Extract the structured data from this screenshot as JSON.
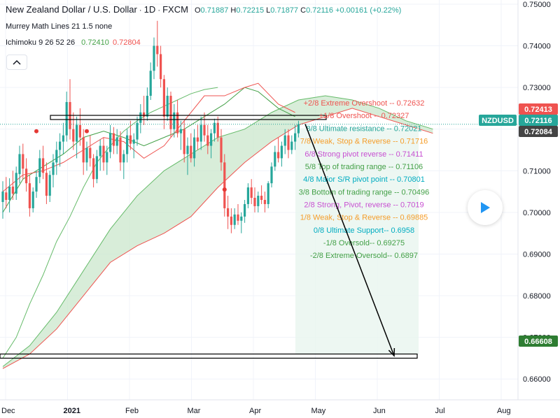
{
  "header": {
    "symbol_title": "New Zealand Dollar / U.S. Dollar",
    "interval": "1D",
    "exchange": "FXCM",
    "ohlc": {
      "open_label": "O",
      "open": "0.71887",
      "high_label": "H",
      "high": "0.72215",
      "low_label": "L",
      "low": "0.71877",
      "close_label": "C",
      "close": "0.72116",
      "change": "+0.00161 (+0.22%)"
    },
    "indicators": [
      {
        "label": "Murrey Math Lines 21 1.5 none"
      },
      {
        "label": "Ichimoku 9 26 52 26",
        "values": [
          "0.72410",
          "0.72804"
        ]
      }
    ]
  },
  "colors": {
    "up": "#26a69a",
    "down": "#ef5350",
    "conversion": "#43a047",
    "base": "#ef5350",
    "cloud_bull": "#c8e6c9",
    "cloud_bear": "#ffcdd2",
    "arrow": "#000000"
  },
  "icons": {
    "collapse": "chevron-up-icon",
    "play": "play-icon"
  },
  "price_axis": {
    "ticks": [
      "0.75000",
      "0.74000",
      "0.73000",
      "0.72000",
      "0.71000",
      "0.70000",
      "0.69000",
      "0.68000",
      "0.67000",
      "0.66000"
    ],
    "badges": [
      {
        "text": "0.72413",
        "color": "#ef5350"
      },
      {
        "text": "NZDUSD",
        "color": "#26a69a"
      },
      {
        "text": "0.72116",
        "color": "#26a69a"
      },
      {
        "text": "0.72084",
        "color": "#444444"
      },
      {
        "text": "0.66608",
        "color": "#2e7d32"
      }
    ]
  },
  "time_axis": {
    "ticks": [
      {
        "label": "Dec"
      },
      {
        "label": "2021",
        "bold": true
      },
      {
        "label": "Feb"
      },
      {
        "label": "Mar"
      },
      {
        "label": "Apr"
      },
      {
        "label": "May"
      },
      {
        "label": "Jun"
      },
      {
        "label": "Jul"
      },
      {
        "label": "Aug"
      }
    ]
  },
  "chart_data": {
    "type": "candlestick",
    "symbol": "NZDUSD",
    "ylim": [
      0.655,
      0.751
    ],
    "grid": true,
    "price_levels": [
      {
        "text": "+2/8 Extreme Overshoot --  0.72632",
        "value": 0.72632,
        "color": "#ef5350"
      },
      {
        "text": "+1/8 Overshoot --  0.72327",
        "value": 0.72327,
        "color": "#ef5350"
      },
      {
        "text": "8/8 Ultimate resistance --  0.72021",
        "value": 0.72021,
        "color": "#26a69a"
      },
      {
        "text": "7/8 Weak, Stop & Reverse --  0.71716",
        "value": 0.71716,
        "color": "#f59d2a"
      },
      {
        "text": "6/8 Strong pivot reverse --  0.71411",
        "value": 0.71411,
        "color": "#c74fd1"
      },
      {
        "text": "5/8 Top of trading range --  0.71106",
        "value": 0.71106,
        "color": "#43a047"
      },
      {
        "text": "4/8 Major S/R pivot point --  0.70801",
        "value": 0.70801,
        "color": "#00acc1"
      },
      {
        "text": "3/8 Bottom of trading range --  0.70496",
        "value": 0.70496,
        "color": "#43a047"
      },
      {
        "text": "2/8 Strong, Pivot, reverse --  0.7019",
        "value": 0.7019,
        "color": "#c74fd1"
      },
      {
        "text": "1/8 Weak, Stop & Reverse --  0.69885",
        "value": 0.69885,
        "color": "#f59d2a"
      },
      {
        "text": "0/8 Ultimate Support--  0.6958",
        "value": 0.6958,
        "color": "#00acc1"
      },
      {
        "text": "-1/8 Oversold--  0.69275",
        "value": 0.69275,
        "color": "#43a047"
      },
      {
        "text": "-2/8 Extreme Oversold--  0.6897",
        "value": 0.6897,
        "color": "#43a047"
      }
    ],
    "horizontal_zones": [
      {
        "name": "resistance-box",
        "top": 0.7233,
        "bottom": 0.7223
      },
      {
        "name": "target-box",
        "top": 0.666,
        "bottom": 0.665
      }
    ],
    "arrow_target": 0.66608,
    "candles": [
      [
        0.7025,
        0.7075,
        0.6985,
        0.705
      ],
      [
        0.7048,
        0.7085,
        0.701,
        0.703
      ],
      [
        0.703,
        0.7082,
        0.7,
        0.7062
      ],
      [
        0.7062,
        0.71,
        0.703,
        0.7045
      ],
      [
        0.7045,
        0.711,
        0.703,
        0.7095
      ],
      [
        0.7092,
        0.716,
        0.707,
        0.714
      ],
      [
        0.714,
        0.7165,
        0.708,
        0.7105
      ],
      [
        0.7105,
        0.713,
        0.705,
        0.707
      ],
      [
        0.707,
        0.709,
        0.699,
        0.701
      ],
      [
        0.701,
        0.706,
        0.7,
        0.705
      ],
      [
        0.705,
        0.71,
        0.7035,
        0.7085
      ],
      [
        0.7085,
        0.715,
        0.707,
        0.713
      ],
      [
        0.713,
        0.716,
        0.708,
        0.7095
      ],
      [
        0.7095,
        0.712,
        0.702,
        0.704
      ],
      [
        0.704,
        0.71,
        0.7025,
        0.709
      ],
      [
        0.709,
        0.714,
        0.706,
        0.712
      ],
      [
        0.712,
        0.717,
        0.709,
        0.715
      ],
      [
        0.715,
        0.719,
        0.711,
        0.717
      ],
      [
        0.717,
        0.7215,
        0.714,
        0.7185
      ],
      [
        0.7185,
        0.729,
        0.717,
        0.7265
      ],
      [
        0.7265,
        0.732,
        0.7175,
        0.72
      ],
      [
        0.72,
        0.724,
        0.715,
        0.717
      ],
      [
        0.717,
        0.723,
        0.713,
        0.721
      ],
      [
        0.721,
        0.725,
        0.716,
        0.718
      ],
      [
        0.718,
        0.72,
        0.709,
        0.712
      ],
      [
        0.712,
        0.717,
        0.71,
        0.7155
      ],
      [
        0.7155,
        0.7185,
        0.711,
        0.713
      ],
      [
        0.713,
        0.714,
        0.706,
        0.708
      ],
      [
        0.708,
        0.715,
        0.707,
        0.7135
      ],
      [
        0.7135,
        0.7175,
        0.71,
        0.716
      ],
      [
        0.716,
        0.718,
        0.71,
        0.712
      ],
      [
        0.712,
        0.716,
        0.709,
        0.7145
      ],
      [
        0.7145,
        0.721,
        0.713,
        0.719
      ],
      [
        0.719,
        0.7205,
        0.714,
        0.716
      ],
      [
        0.716,
        0.72,
        0.714,
        0.718
      ],
      [
        0.718,
        0.7195,
        0.71,
        0.712
      ],
      [
        0.712,
        0.715,
        0.708,
        0.714
      ],
      [
        0.714,
        0.72,
        0.712,
        0.7185
      ],
      [
        0.7185,
        0.722,
        0.715,
        0.7165
      ],
      [
        0.7165,
        0.719,
        0.713,
        0.7175
      ],
      [
        0.7175,
        0.723,
        0.716,
        0.7215
      ],
      [
        0.7215,
        0.726,
        0.719,
        0.724
      ],
      [
        0.724,
        0.728,
        0.721,
        0.723
      ],
      [
        0.723,
        0.73,
        0.722,
        0.728
      ],
      [
        0.728,
        0.736,
        0.727,
        0.734
      ],
      [
        0.734,
        0.742,
        0.732,
        0.74
      ],
      [
        0.74,
        0.746,
        0.735,
        0.738
      ],
      [
        0.738,
        0.74,
        0.73,
        0.732
      ],
      [
        0.732,
        0.733,
        0.72,
        0.723
      ],
      [
        0.723,
        0.73,
        0.722,
        0.728
      ],
      [
        0.728,
        0.729,
        0.718,
        0.72
      ],
      [
        0.72,
        0.726,
        0.718,
        0.724
      ],
      [
        0.724,
        0.727,
        0.718,
        0.719
      ],
      [
        0.719,
        0.722,
        0.715,
        0.72
      ],
      [
        0.72,
        0.722,
        0.712,
        0.714
      ],
      [
        0.714,
        0.718,
        0.709,
        0.716
      ],
      [
        0.716,
        0.719,
        0.712,
        0.713
      ],
      [
        0.713,
        0.72,
        0.711,
        0.718
      ],
      [
        0.718,
        0.721,
        0.715,
        0.717
      ],
      [
        0.717,
        0.723,
        0.715,
        0.721
      ],
      [
        0.721,
        0.724,
        0.717,
        0.7185
      ],
      [
        0.7185,
        0.721,
        0.714,
        0.716
      ],
      [
        0.716,
        0.72,
        0.713,
        0.719
      ],
      [
        0.719,
        0.7225,
        0.717,
        0.7215
      ],
      [
        0.7215,
        0.723,
        0.717,
        0.718
      ],
      [
        0.718,
        0.72,
        0.71,
        0.712
      ],
      [
        0.712,
        0.714,
        0.699,
        0.701
      ],
      [
        0.701,
        0.704,
        0.696,
        0.699
      ],
      [
        0.699,
        0.701,
        0.695,
        0.697
      ],
      [
        0.697,
        0.701,
        0.696,
        0.6995
      ],
      [
        0.6995,
        0.702,
        0.697,
        0.698
      ],
      [
        0.698,
        0.7,
        0.695,
        0.699
      ],
      [
        0.699,
        0.703,
        0.6975,
        0.702
      ],
      [
        0.702,
        0.707,
        0.701,
        0.706
      ],
      [
        0.706,
        0.708,
        0.702,
        0.7035
      ],
      [
        0.7035,
        0.706,
        0.7,
        0.7015
      ],
      [
        0.7015,
        0.705,
        0.7,
        0.704
      ],
      [
        0.704,
        0.7065,
        0.702,
        0.703
      ],
      [
        0.703,
        0.705,
        0.7,
        0.702
      ],
      [
        0.702,
        0.7075,
        0.701,
        0.707
      ],
      [
        0.707,
        0.712,
        0.706,
        0.711
      ],
      [
        0.711,
        0.716,
        0.71,
        0.7145
      ],
      [
        0.7145,
        0.718,
        0.712,
        0.713
      ],
      [
        0.713,
        0.717,
        0.711,
        0.716
      ],
      [
        0.716,
        0.72,
        0.714,
        0.7185
      ],
      [
        0.7185,
        0.72,
        0.713,
        0.715
      ],
      [
        0.715,
        0.7185,
        0.714,
        0.717
      ],
      [
        0.717,
        0.721,
        0.715,
        0.719
      ],
      [
        0.719,
        0.722,
        0.718,
        0.7212
      ]
    ],
    "conversion_line": [
      [
        0,
        0.7
      ],
      [
        6,
        0.708
      ],
      [
        12,
        0.711
      ],
      [
        18,
        0.714
      ],
      [
        24,
        0.718
      ],
      [
        30,
        0.7195
      ],
      [
        36,
        0.718
      ],
      [
        42,
        0.716
      ],
      [
        48,
        0.718
      ],
      [
        54,
        0.72
      ],
      [
        60,
        0.723
      ],
      [
        66,
        0.726
      ],
      [
        72,
        0.73
      ],
      [
        76,
        0.729
      ],
      [
        82,
        0.725
      ],
      [
        87,
        0.723
      ]
    ],
    "base_line": [
      [
        0,
        0.705
      ],
      [
        6,
        0.709
      ],
      [
        12,
        0.71
      ],
      [
        18,
        0.712
      ],
      [
        24,
        0.715
      ],
      [
        30,
        0.718
      ],
      [
        36,
        0.717
      ],
      [
        42,
        0.713
      ],
      [
        48,
        0.716
      ],
      [
        54,
        0.722
      ],
      [
        60,
        0.728
      ],
      [
        66,
        0.728
      ],
      [
        72,
        0.73
      ],
      [
        76,
        0.731
      ],
      [
        82,
        0.726
      ],
      [
        87,
        0.724
      ]
    ],
    "lagging_span": [
      [
        0,
        0.665
      ],
      [
        4,
        0.67
      ],
      [
        8,
        0.678
      ],
      [
        12,
        0.685
      ],
      [
        16,
        0.693
      ],
      [
        20,
        0.699
      ],
      [
        24,
        0.706
      ],
      [
        28,
        0.712
      ],
      [
        32,
        0.716
      ],
      [
        36,
        0.7195
      ],
      [
        40,
        0.722
      ],
      [
        44,
        0.724
      ],
      [
        48,
        0.7255
      ],
      [
        52,
        0.727
      ],
      [
        56,
        0.7285
      ],
      [
        60,
        0.7295
      ],
      [
        64,
        0.73
      ]
    ],
    "cloud_upper": [
      [
        0,
        0.663
      ],
      [
        8,
        0.668
      ],
      [
        16,
        0.676
      ],
      [
        24,
        0.686
      ],
      [
        32,
        0.696
      ],
      [
        40,
        0.704
      ],
      [
        48,
        0.71
      ],
      [
        56,
        0.714
      ],
      [
        64,
        0.718
      ],
      [
        72,
        0.72
      ],
      [
        80,
        0.724
      ],
      [
        88,
        0.727
      ],
      [
        96,
        0.728
      ],
      [
        104,
        0.727
      ],
      [
        112,
        0.725
      ],
      [
        120,
        0.722
      ],
      [
        128,
        0.72
      ]
    ],
    "cloud_lower": [
      [
        0,
        0.6625
      ],
      [
        8,
        0.666
      ],
      [
        16,
        0.672
      ],
      [
        24,
        0.68
      ],
      [
        32,
        0.688
      ],
      [
        40,
        0.692
      ],
      [
        48,
        0.695
      ],
      [
        56,
        0.699
      ],
      [
        64,
        0.706
      ],
      [
        72,
        0.712
      ],
      [
        80,
        0.717
      ],
      [
        88,
        0.721
      ],
      [
        96,
        0.723
      ],
      [
        104,
        0.725
      ],
      [
        112,
        0.723
      ],
      [
        120,
        0.721
      ],
      [
        128,
        0.719
      ]
    ],
    "markers": [
      [
        10,
        0.7195
      ],
      [
        25,
        0.7195
      ],
      [
        66,
        0.7055
      ]
    ]
  }
}
